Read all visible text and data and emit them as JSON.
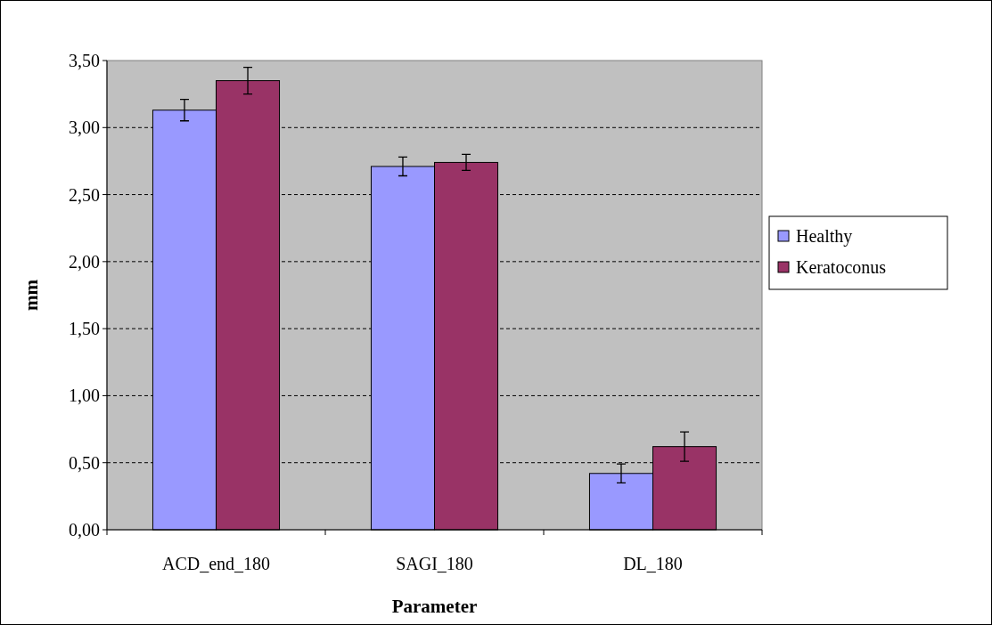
{
  "chart_data": {
    "type": "bar",
    "xlabel": "Parameter",
    "ylabel": "mm",
    "categories": [
      "ACD_end_180",
      "SAGI_180",
      "DL_180"
    ],
    "series": [
      {
        "name": "Healthy",
        "color": "#9999ff",
        "values": [
          3.13,
          2.71,
          0.42
        ],
        "errors": [
          0.08,
          0.07,
          0.07
        ]
      },
      {
        "name": "Keratoconus",
        "color": "#993366",
        "values": [
          3.35,
          2.74,
          0.62
        ],
        "errors": [
          0.1,
          0.06,
          0.11
        ]
      }
    ],
    "ylim": [
      0,
      3.5
    ],
    "yticks": [
      {
        "value": 0,
        "label": "0,00"
      },
      {
        "value": 0.5,
        "label": "0,50"
      },
      {
        "value": 1,
        "label": "1,00"
      },
      {
        "value": 1.5,
        "label": "1,50"
      },
      {
        "value": 2,
        "label": "2,00"
      },
      {
        "value": 2.5,
        "label": "2,50"
      },
      {
        "value": 3,
        "label": "3,00"
      },
      {
        "value": 3.5,
        "label": "3,50"
      }
    ],
    "grid": "y",
    "legend": "right"
  }
}
